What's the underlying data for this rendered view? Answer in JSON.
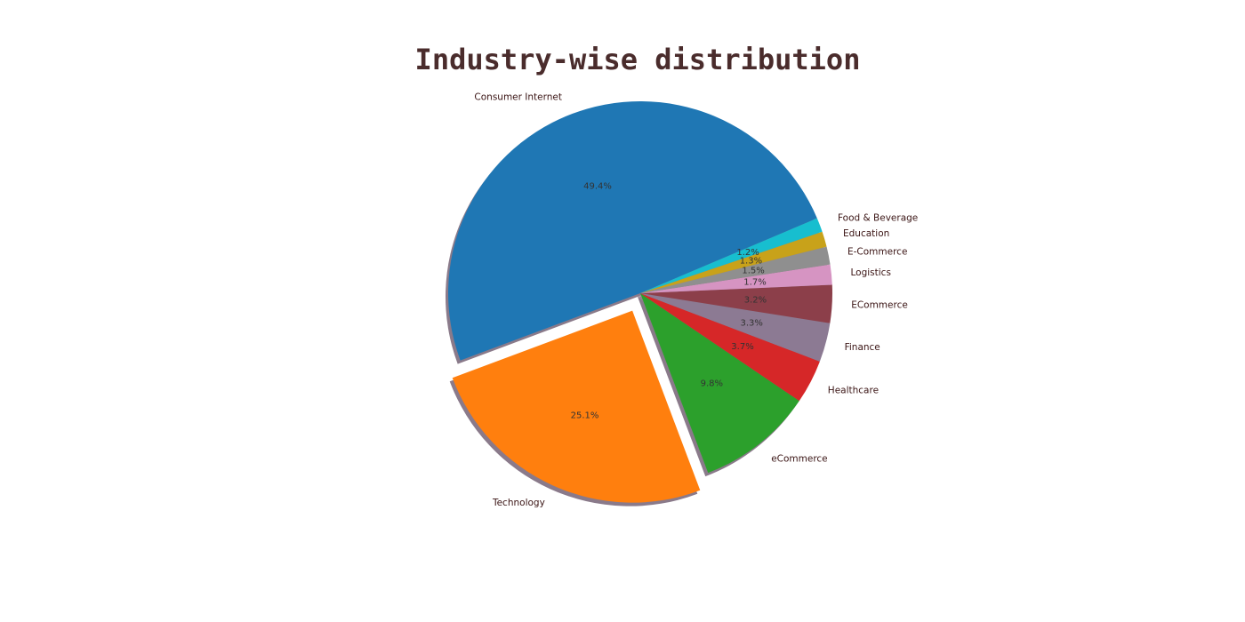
{
  "chart_data": {
    "type": "pie",
    "title": "Industry-wise distribution",
    "categories": [
      "Consumer Internet",
      "Technology",
      "eCommerce",
      "Healthcare",
      "Finance",
      "ECommerce",
      "Logistics",
      "E-Commerce",
      "Education",
      "Food & Beverage"
    ],
    "values": [
      49.4,
      25.1,
      9.8,
      3.7,
      3.3,
      3.2,
      1.7,
      1.5,
      1.3,
      1.2
    ],
    "value_labels": [
      "49.4%",
      "25.1%",
      "9.8%",
      "3.7%",
      "3.3%",
      "3.2%",
      "1.7%",
      "1.5%",
      "1.3%",
      "1.2%"
    ],
    "colors": [
      "#1f77b4",
      "#ff7f0e",
      "#2ca02c",
      "#d62728",
      "#8c7a93",
      "#8c3f4a",
      "#d694c2",
      "#8f8f8f",
      "#c8a21a",
      "#17becf"
    ],
    "exploded": [
      "Technology"
    ],
    "shadow": true,
    "legend": "none"
  }
}
